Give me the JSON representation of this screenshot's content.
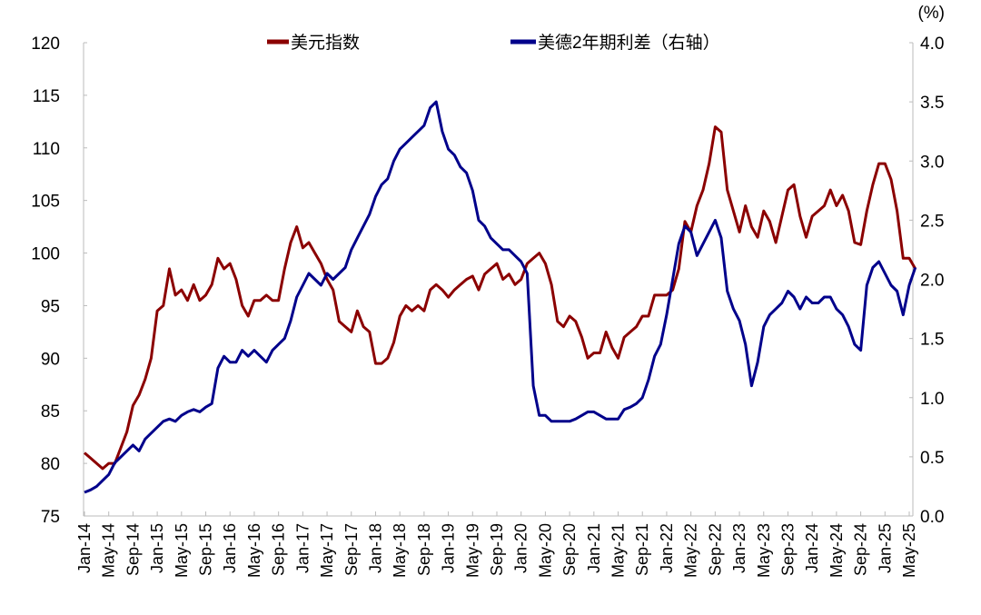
{
  "chart_data": {
    "type": "line",
    "unit_label_right": "(%)",
    "x_tick_labels": [
      "Jan-14",
      "May-14",
      "Sep-14",
      "Jan-15",
      "May-15",
      "Sep-15",
      "Jan-16",
      "May-16",
      "Sep-16",
      "Jan-17",
      "May-17",
      "Sep-17",
      "Jan-18",
      "May-18",
      "Sep-18",
      "Jan-19",
      "May-19",
      "Sep-19",
      "Jan-20",
      "May-20",
      "Sep-20",
      "Jan-21",
      "May-21",
      "Sep-21",
      "Jan-22",
      "May-22",
      "Sep-22",
      "Jan-23",
      "May-23",
      "Sep-23",
      "Jan-24",
      "May-24",
      "Sep-24",
      "Jan-25",
      "May-25"
    ],
    "x_start": "2014-01",
    "x_frequency": "monthly",
    "y_left": {
      "range": [
        75,
        120
      ],
      "ticks": [
        "75",
        "80",
        "85",
        "90",
        "95",
        "100",
        "105",
        "110",
        "115",
        "120"
      ]
    },
    "y_right": {
      "range": [
        0.0,
        4.0
      ],
      "ticks": [
        "0.0",
        "0.5",
        "1.0",
        "1.5",
        "2.0",
        "2.5",
        "3.0",
        "3.5",
        "4.0"
      ]
    },
    "legend_placement": "top-center",
    "grid": false,
    "series": [
      {
        "name": "美元指数",
        "axis": "left",
        "color": "#8B0000",
        "values": [
          81,
          80.5,
          80,
          79.5,
          80,
          80,
          81.5,
          83,
          85.5,
          86.5,
          88,
          90,
          94.5,
          95,
          98.5,
          96,
          96.5,
          95.5,
          97,
          95.5,
          96,
          97,
          99.5,
          98.5,
          99,
          97.5,
          95,
          94,
          95.5,
          95.5,
          96,
          95.5,
          95.5,
          98.5,
          101,
          102.5,
          100.5,
          101,
          100,
          99,
          97.5,
          96.5,
          93.5,
          93,
          92.5,
          94.5,
          93,
          92.5,
          89.5,
          89.5,
          90,
          91.5,
          94,
          95,
          94.5,
          95,
          94.5,
          96.5,
          97,
          96.5,
          95.8,
          96.5,
          97,
          97.5,
          97.8,
          96.5,
          98,
          98.5,
          99,
          97.5,
          98,
          97,
          97.5,
          99,
          99.5,
          100,
          99,
          97,
          93.5,
          93,
          94,
          93.5,
          92,
          90,
          90.5,
          90.5,
          92.5,
          91,
          90,
          92,
          92.5,
          93,
          94,
          94,
          96,
          96,
          96,
          96.5,
          98.5,
          103,
          102,
          104.5,
          106,
          108.5,
          112,
          111.5,
          106,
          104,
          102,
          104.5,
          102.5,
          101.5,
          104,
          103,
          101,
          103.5,
          106,
          106.5,
          103.5,
          101.5,
          103.5,
          104,
          104.5,
          106,
          104.5,
          105.5,
          104,
          101,
          100.8,
          104,
          106.5,
          108.5,
          108.5,
          107,
          104,
          99.5,
          99.5,
          98.5
        ]
      },
      {
        "name": "美德2年期利差（右轴）",
        "axis": "right",
        "color": "#00008B",
        "values": [
          0.2,
          0.22,
          0.25,
          0.3,
          0.35,
          0.45,
          0.5,
          0.55,
          0.6,
          0.55,
          0.65,
          0.7,
          0.75,
          0.8,
          0.82,
          0.8,
          0.85,
          0.88,
          0.9,
          0.88,
          0.92,
          0.95,
          1.25,
          1.35,
          1.3,
          1.3,
          1.4,
          1.35,
          1.4,
          1.35,
          1.3,
          1.4,
          1.45,
          1.5,
          1.65,
          1.85,
          1.95,
          2.05,
          2.0,
          1.95,
          2.05,
          2.0,
          2.05,
          2.1,
          2.25,
          2.35,
          2.45,
          2.55,
          2.7,
          2.8,
          2.85,
          3.0,
          3.1,
          3.15,
          3.2,
          3.25,
          3.3,
          3.45,
          3.5,
          3.25,
          3.1,
          3.05,
          2.95,
          2.9,
          2.75,
          2.5,
          2.45,
          2.35,
          2.3,
          2.25,
          2.25,
          2.2,
          2.15,
          2.05,
          1.1,
          0.85,
          0.85,
          0.8,
          0.8,
          0.8,
          0.8,
          0.82,
          0.85,
          0.88,
          0.88,
          0.85,
          0.82,
          0.82,
          0.82,
          0.9,
          0.92,
          0.95,
          1.0,
          1.15,
          1.35,
          1.45,
          1.7,
          2.0,
          2.3,
          2.45,
          2.4,
          2.2,
          2.3,
          2.4,
          2.5,
          2.35,
          1.9,
          1.75,
          1.65,
          1.45,
          1.1,
          1.3,
          1.6,
          1.7,
          1.75,
          1.8,
          1.9,
          1.85,
          1.75,
          1.85,
          1.8,
          1.8,
          1.85,
          1.85,
          1.75,
          1.7,
          1.6,
          1.45,
          1.4,
          1.95,
          2.1,
          2.15,
          2.05,
          1.95,
          1.9,
          1.7,
          1.95,
          2.1
        ]
      }
    ]
  }
}
